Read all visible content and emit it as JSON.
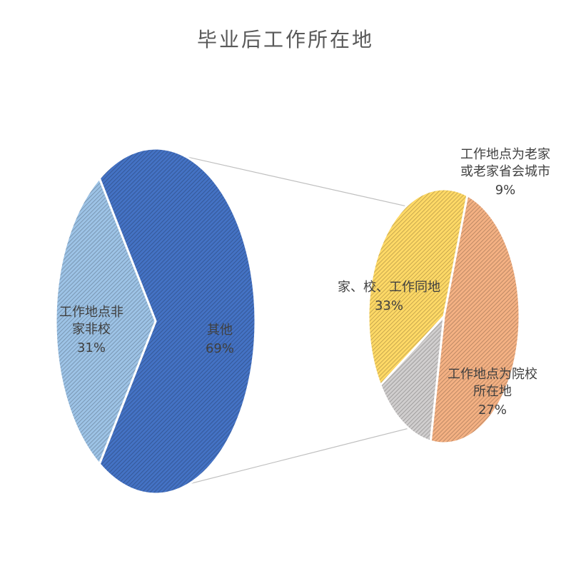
{
  "chart_data": {
    "type": "pie",
    "title": "毕业后工作所在地",
    "main_pie": {
      "slices": [
        {
          "label_lines": [
            "其他"
          ],
          "value_label": "69%",
          "value": 69,
          "color": "#4472C4"
        },
        {
          "label_lines": [
            "工作地点非",
            "家非校"
          ],
          "value_label": "31%",
          "value": 31,
          "color": "#9DC3E6"
        }
      ]
    },
    "breakdown_pie": {
      "of_slice": "其他",
      "slices": [
        {
          "label_lines": [
            "家、校、工作同地"
          ],
          "value_label": "33%",
          "value": 33,
          "color": "#F4B183"
        },
        {
          "label_lines": [
            "工作地点为老家",
            "或老家省会城市"
          ],
          "value_label": "9%",
          "value": 9,
          "color": "#D0CECE"
        },
        {
          "label_lines": [
            "工作地点为院校",
            "所在地"
          ],
          "value_label": "27%",
          "value": 27,
          "color": "#FFD966"
        }
      ]
    },
    "legend": "none",
    "pattern": "diagonal-hatch"
  }
}
